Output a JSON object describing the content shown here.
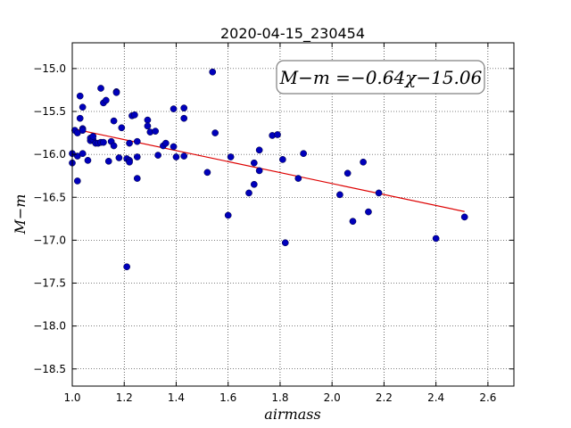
{
  "chart_data": {
    "type": "scatter",
    "title": "2020-04-15_230454",
    "xlabel": "airmass",
    "ylabel": "M−m",
    "xlim": [
      1.0,
      2.7
    ],
    "ylim": [
      -18.7,
      -14.7
    ],
    "y_inverted": true,
    "grid": true,
    "grid_style": "dotted",
    "x_ticks": [
      1.0,
      1.2,
      1.4,
      1.6,
      1.8,
      2.0,
      2.2,
      2.4,
      2.6
    ],
    "x_tick_labels": [
      "1.0",
      "1.2",
      "1.4",
      "1.6",
      "1.8",
      "2.0",
      "2.2",
      "2.4",
      "2.6"
    ],
    "y_ticks": [
      -15.0,
      -15.5,
      -16.0,
      -16.5,
      -17.0,
      -17.5,
      -18.0,
      -18.5
    ],
    "y_tick_labels": [
      "−15.0",
      "−15.5",
      "−16.0",
      "−16.5",
      "−17.0",
      "−17.5",
      "−18.0",
      "−18.5"
    ],
    "annotation": "M−m =−0.64χ−15.06",
    "point_color": "#0000bb",
    "fit_color": "#dd0000",
    "fit_line": {
      "slope": -0.64,
      "intercept": -15.06,
      "x_range": [
        1.0,
        2.51
      ]
    },
    "points": [
      [
        1.0,
        -16.1
      ],
      [
        1.0,
        -15.99
      ],
      [
        1.01,
        -15.72
      ],
      [
        1.02,
        -16.31
      ],
      [
        1.02,
        -15.75
      ],
      [
        1.02,
        -16.02
      ],
      [
        1.03,
        -15.58
      ],
      [
        1.03,
        -15.32
      ],
      [
        1.04,
        -15.7
      ],
      [
        1.04,
        -15.72
      ],
      [
        1.04,
        -15.45
      ],
      [
        1.04,
        -15.99
      ],
      [
        1.06,
        -16.07
      ],
      [
        1.07,
        -15.84
      ],
      [
        1.07,
        -15.81
      ],
      [
        1.08,
        -15.83
      ],
      [
        1.08,
        -15.79
      ],
      [
        1.09,
        -15.87
      ],
      [
        1.1,
        -15.87
      ],
      [
        1.11,
        -15.86
      ],
      [
        1.11,
        -15.23
      ],
      [
        1.12,
        -15.4
      ],
      [
        1.12,
        -15.86
      ],
      [
        1.13,
        -15.37
      ],
      [
        1.14,
        -16.08
      ],
      [
        1.15,
        -15.85
      ],
      [
        1.16,
        -15.61
      ],
      [
        1.16,
        -15.9
      ],
      [
        1.17,
        -15.27
      ],
      [
        1.17,
        -15.28
      ],
      [
        1.18,
        -16.04
      ],
      [
        1.19,
        -15.69
      ],
      [
        1.21,
        -16.05
      ],
      [
        1.21,
        -17.31
      ],
      [
        1.22,
        -16.07
      ],
      [
        1.22,
        -16.09
      ],
      [
        1.22,
        -15.87
      ],
      [
        1.23,
        -15.55
      ],
      [
        1.24,
        -15.54
      ],
      [
        1.25,
        -16.28
      ],
      [
        1.25,
        -16.03
      ],
      [
        1.25,
        -15.85
      ],
      [
        1.29,
        -15.6
      ],
      [
        1.29,
        -15.67
      ],
      [
        1.3,
        -15.74
      ],
      [
        1.32,
        -15.73
      ],
      [
        1.33,
        -16.01
      ],
      [
        1.35,
        -15.9
      ],
      [
        1.36,
        -15.87
      ],
      [
        1.39,
        -15.91
      ],
      [
        1.39,
        -15.47
      ],
      [
        1.4,
        -16.03
      ],
      [
        1.43,
        -15.58
      ],
      [
        1.43,
        -15.46
      ],
      [
        1.43,
        -16.02
      ],
      [
        1.52,
        -16.21
      ],
      [
        1.54,
        -15.04
      ],
      [
        1.55,
        -15.75
      ],
      [
        1.6,
        -16.71
      ],
      [
        1.61,
        -16.03
      ],
      [
        1.68,
        -16.45
      ],
      [
        1.7,
        -16.35
      ],
      [
        1.7,
        -16.1
      ],
      [
        1.72,
        -15.95
      ],
      [
        1.72,
        -16.19
      ],
      [
        1.77,
        -15.78
      ],
      [
        1.79,
        -15.77
      ],
      [
        1.81,
        -16.06
      ],
      [
        1.82,
        -17.03
      ],
      [
        1.87,
        -16.28
      ],
      [
        1.89,
        -15.99
      ],
      [
        2.03,
        -16.47
      ],
      [
        2.06,
        -16.22
      ],
      [
        2.08,
        -16.78
      ],
      [
        2.12,
        -16.09
      ],
      [
        2.14,
        -16.67
      ],
      [
        2.18,
        -16.45
      ],
      [
        2.4,
        -16.98
      ],
      [
        2.51,
        -16.73
      ]
    ]
  }
}
